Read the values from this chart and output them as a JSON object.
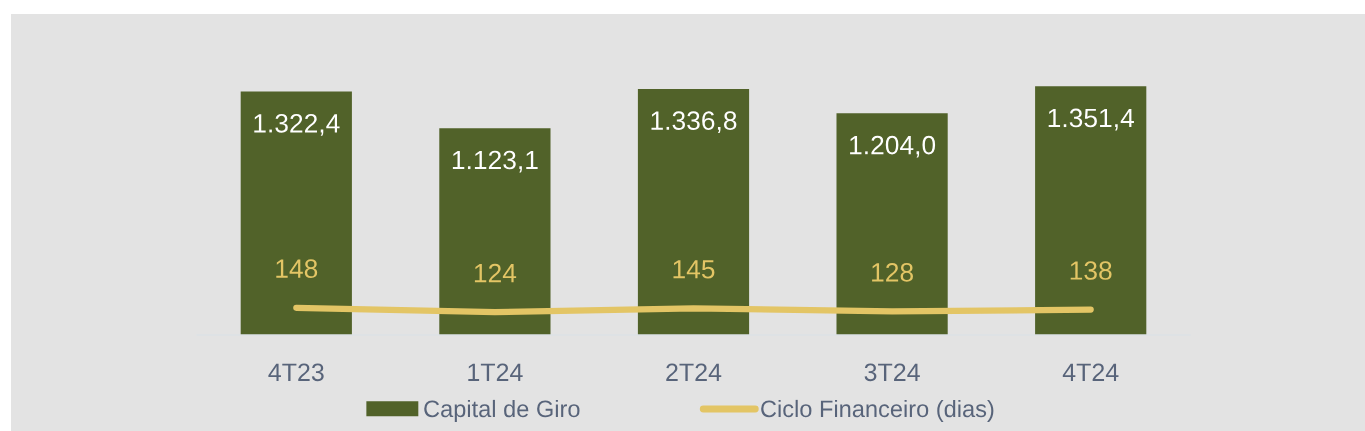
{
  "chart_data": {
    "type": "bar",
    "categories": [
      "4T23",
      "1T24",
      "2T24",
      "3T24",
      "4T24"
    ],
    "series": [
      {
        "name": "Capital de Giro",
        "color": "#516229",
        "values": [
          1322.4,
          1123.1,
          1336.8,
          1204.0,
          1351.4
        ],
        "value_labels": [
          "1.322,4",
          "1.123,1",
          "1.336,8",
          "1.204,0",
          "1.351,4"
        ]
      },
      {
        "name": "Ciclo Financeiro (dias)",
        "type": "line",
        "color": "#e3c565",
        "values": [
          148,
          124,
          145,
          128,
          138
        ],
        "value_labels": [
          "148",
          "124",
          "145",
          "128",
          "138"
        ]
      }
    ],
    "legend": "bottom",
    "tick_labels": "x"
  }
}
